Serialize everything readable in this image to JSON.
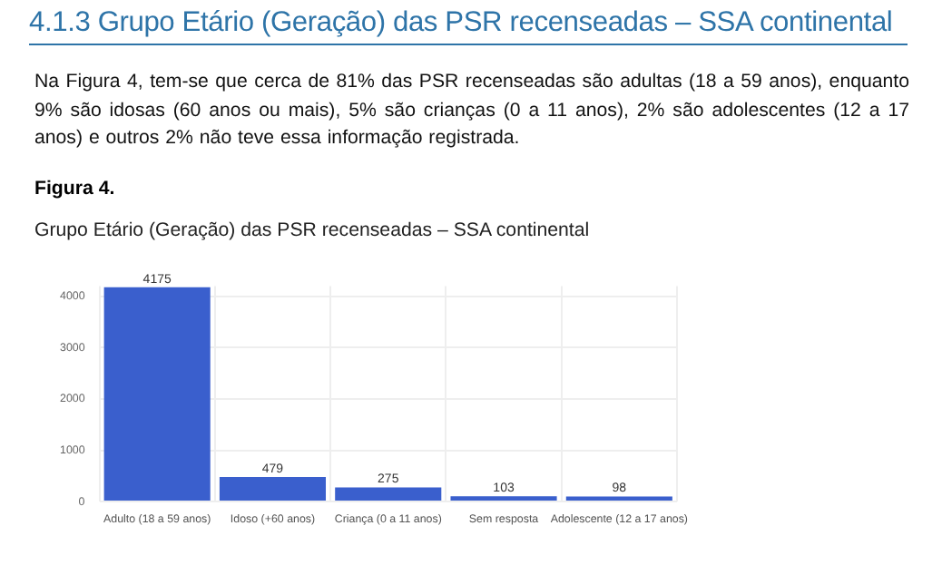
{
  "chart_data": {
    "type": "bar",
    "title": "Grupo Etário (Geração) das PSR recenseadas – SSA continental",
    "annotations": [
      "4.1.3 Grupo Etário (Geração) das PSR recenseadas – SSA continental",
      "Na Figura 4, tem-se que cerca de 81% das PSR recenseadas são adultas (18 a 59 anos), enquanto 9% são idosas (60 anos ou mais), 5% são crianças (0 a 11 anos), 2% são adolescentes (12 a 17 anos) e outros 2% não teve essa informação registrada.",
      "Figura 4."
    ],
    "categories": [
      "Adulto (18 a 59 anos)",
      "Idoso (+60 anos)",
      "Criança (0 a 11 anos)",
      "Sem resposta",
      "Adolescente (12 a 17 anos)"
    ],
    "values": [
      4175,
      479,
      275,
      103,
      98
    ],
    "color": "#3a5fcd",
    "ylim": [
      0,
      4200
    ],
    "yticks": [
      0,
      1000,
      2000,
      3000,
      4000
    ],
    "grid": true,
    "data_labels": true
  }
}
